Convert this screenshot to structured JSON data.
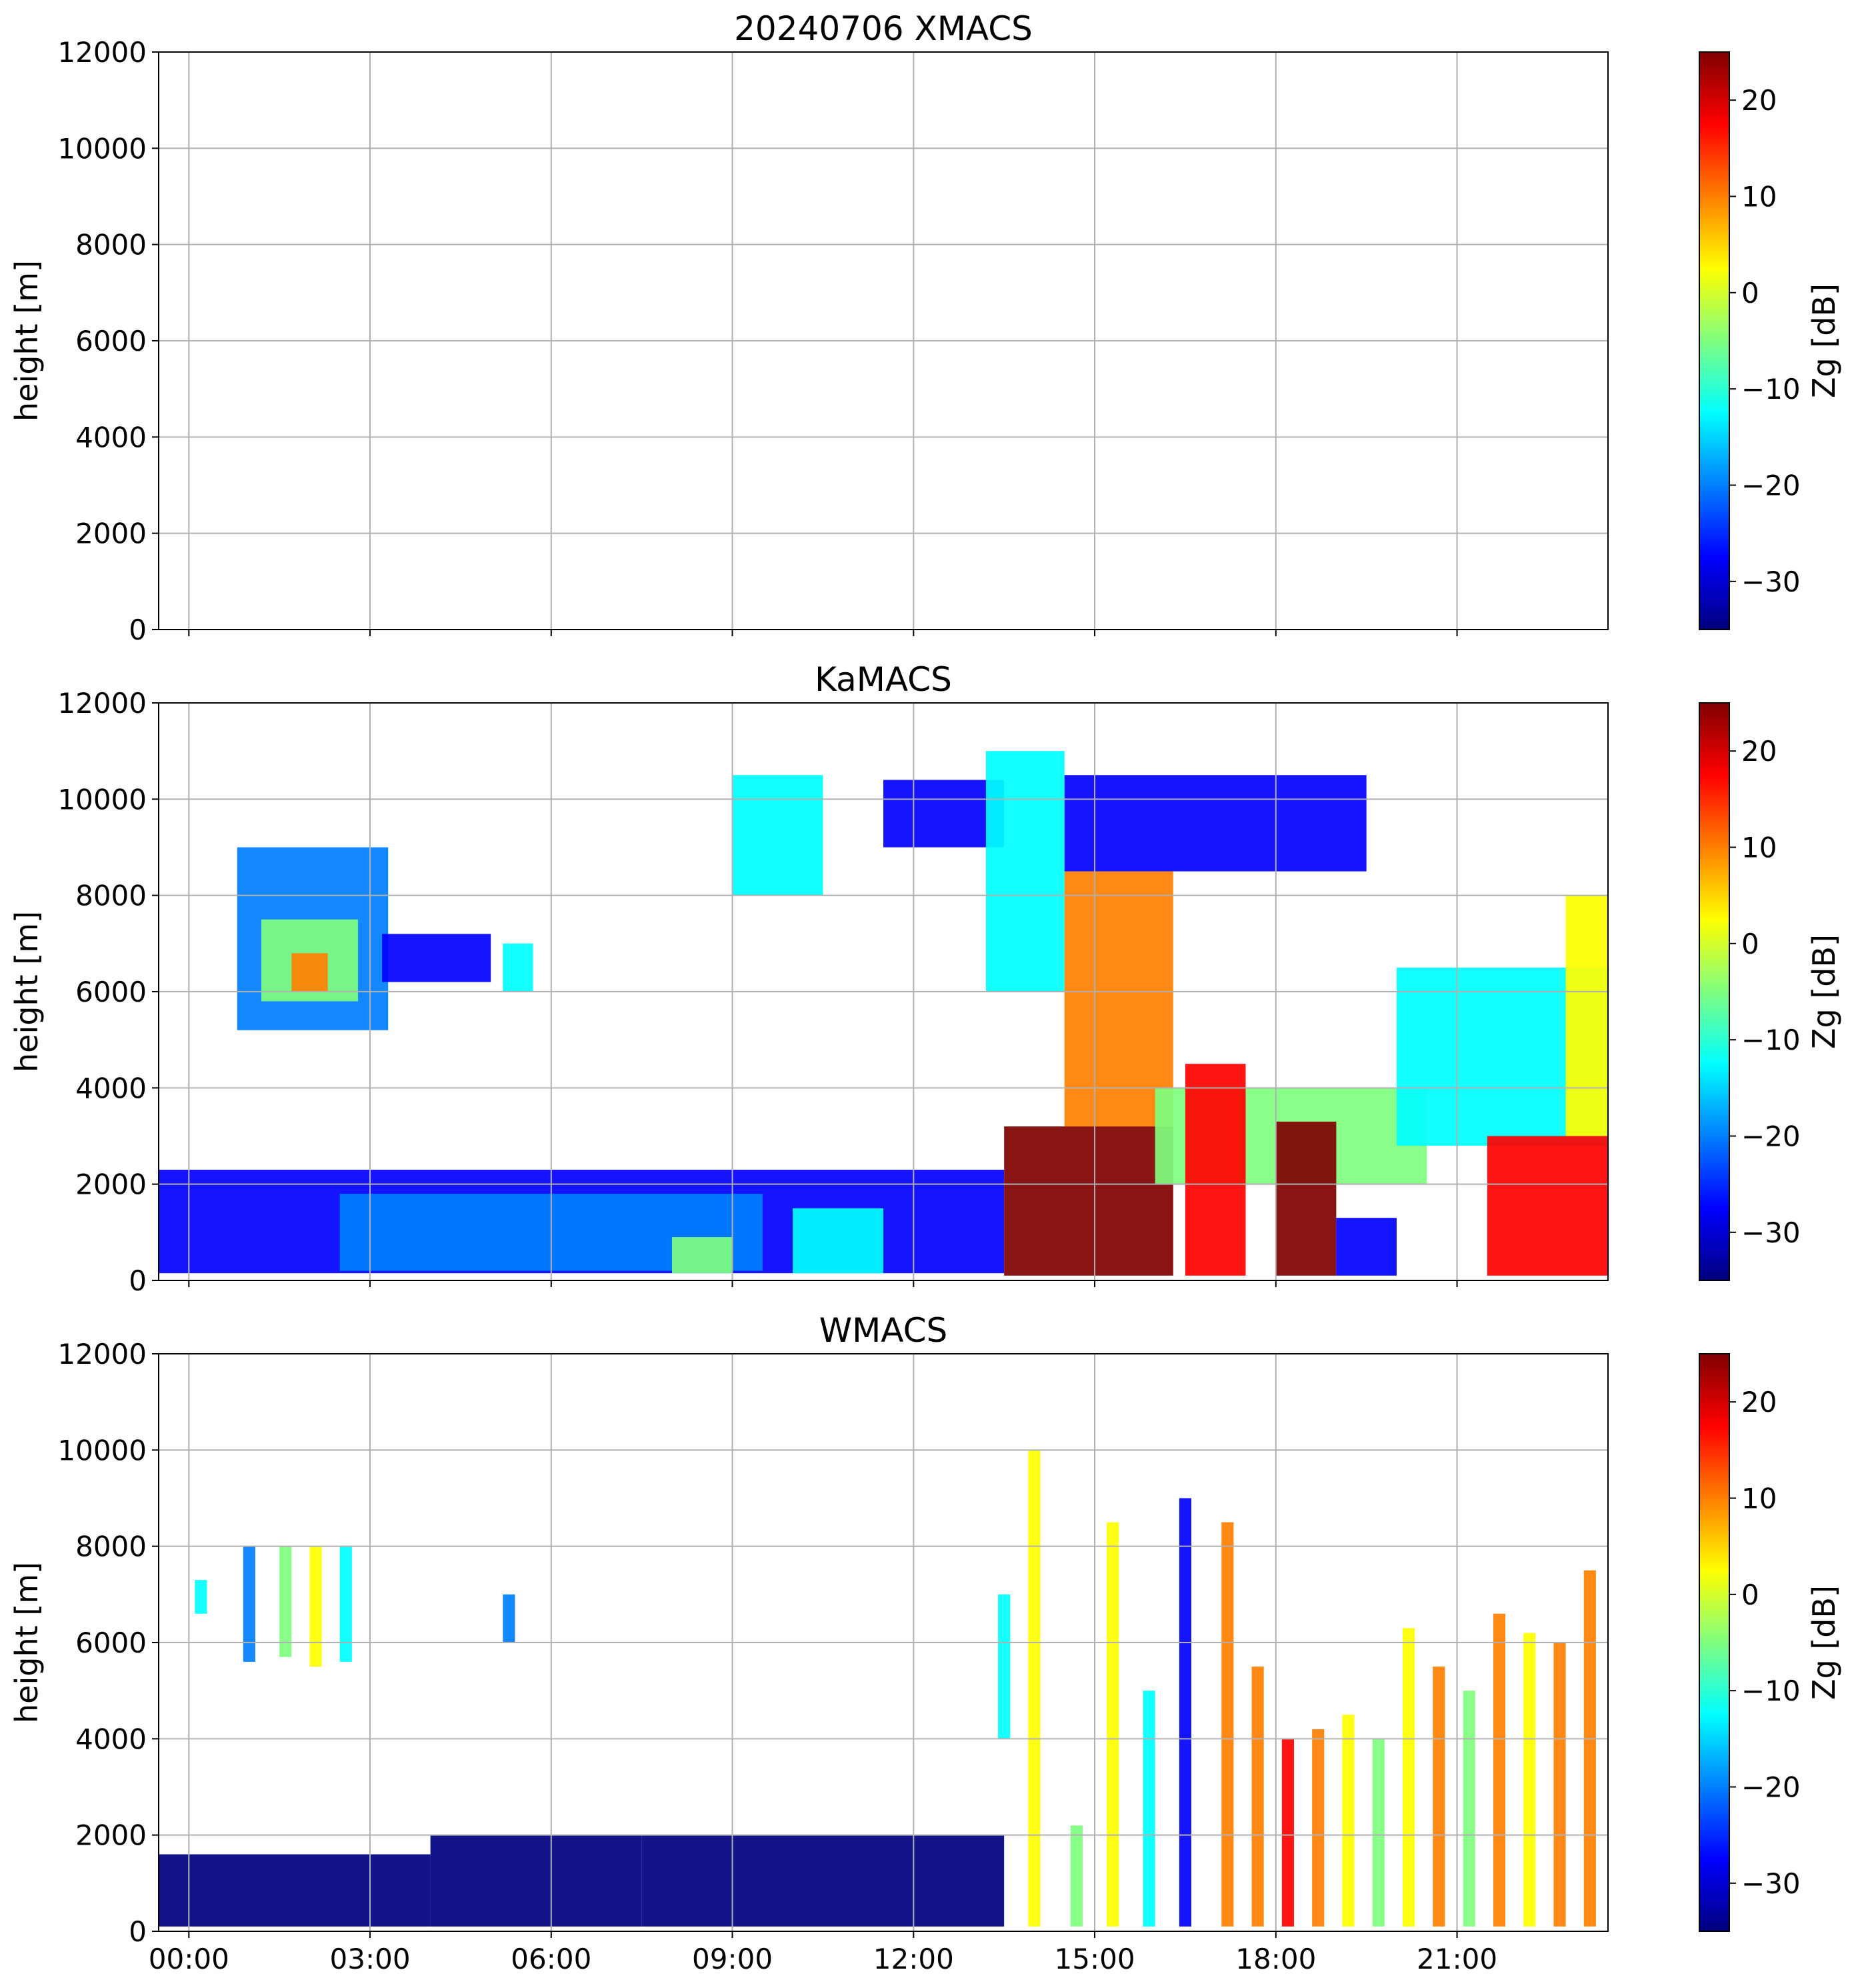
{
  "figure": {
    "title_prefix": "20240706",
    "height_unit": "m"
  },
  "colormap": {
    "name": "jet",
    "stops": [
      "#00007f",
      "#0000ff",
      "#007fff",
      "#00ffff",
      "#7fff7f",
      "#ffff00",
      "#ff7f00",
      "#ff0000",
      "#7f0000"
    ]
  },
  "chart_data": [
    {
      "type": "heatmap",
      "title": "20240706 XMACS",
      "xlabel": "",
      "ylabel": "height [m]",
      "ylim": [
        0,
        12000
      ],
      "xlim_hours": [
        -0.5,
        23.5
      ],
      "yticks": [
        0,
        2000,
        4000,
        6000,
        8000,
        10000,
        12000
      ],
      "xticks": [
        "00:00",
        "03:00",
        "06:00",
        "09:00",
        "12:00",
        "15:00",
        "18:00",
        "21:00"
      ],
      "show_xticklabels": false,
      "grid": true,
      "colorbar": {
        "label": "Zg [dB]",
        "range": [
          -35,
          25
        ],
        "ticks": [
          -30,
          -20,
          -10,
          0,
          10,
          20
        ]
      },
      "echoes": []
    },
    {
      "type": "heatmap",
      "title": "KaMACS",
      "xlabel": "",
      "ylabel": "height [m]",
      "ylim": [
        0,
        12000
      ],
      "xlim_hours": [
        -0.5,
        23.5
      ],
      "yticks": [
        0,
        2000,
        4000,
        6000,
        8000,
        10000,
        12000
      ],
      "xticks": [
        "00:00",
        "03:00",
        "06:00",
        "09:00",
        "12:00",
        "15:00",
        "18:00",
        "21:00"
      ],
      "show_xticklabels": false,
      "grid": true,
      "colorbar": {
        "label": "Zg [dB]",
        "range": [
          -35,
          25
        ],
        "ticks": [
          -30,
          -20,
          -10,
          0,
          10,
          20
        ]
      },
      "echoes": [
        {
          "t0": -0.5,
          "t1": 13.5,
          "h0": 150,
          "h1": 2300,
          "z": -30
        },
        {
          "t0": 2.5,
          "t1": 9.5,
          "h0": 200,
          "h1": 1800,
          "z": -18
        },
        {
          "t0": 8.0,
          "t1": 9.0,
          "h0": 150,
          "h1": 900,
          "z": -5
        },
        {
          "t0": 10.0,
          "t1": 11.5,
          "h0": 150,
          "h1": 1500,
          "z": -12
        },
        {
          "t0": 0.8,
          "t1": 3.3,
          "h0": 5200,
          "h1": 9000,
          "z": -18
        },
        {
          "t0": 1.2,
          "t1": 2.8,
          "h0": 5800,
          "h1": 7500,
          "z": -2
        },
        {
          "t0": 1.7,
          "t1": 2.3,
          "h0": 6000,
          "h1": 6800,
          "z": 12
        },
        {
          "t0": 3.2,
          "t1": 5.0,
          "h0": 6200,
          "h1": 7200,
          "z": -25
        },
        {
          "t0": 5.2,
          "t1": 5.7,
          "h0": 6000,
          "h1": 7000,
          "z": -12
        },
        {
          "t0": 9.0,
          "t1": 10.5,
          "h0": 8000,
          "h1": 10500,
          "z": -15
        },
        {
          "t0": 11.5,
          "t1": 13.5,
          "h0": 9000,
          "h1": 10400,
          "z": -25
        },
        {
          "t0": 13.2,
          "t1": 14.5,
          "h0": 6000,
          "h1": 11000,
          "z": -10
        },
        {
          "t0": 13.5,
          "t1": 16.3,
          "h0": 100,
          "h1": 3200,
          "z": 25
        },
        {
          "t0": 14.5,
          "t1": 16.3,
          "h0": 3200,
          "h1": 8500,
          "z": 12
        },
        {
          "t0": 14.5,
          "t1": 19.5,
          "h0": 8500,
          "h1": 10500,
          "z": -25
        },
        {
          "t0": 16.0,
          "t1": 20.5,
          "h0": 2000,
          "h1": 4000,
          "z": -5
        },
        {
          "t0": 16.5,
          "t1": 17.5,
          "h0": 100,
          "h1": 4500,
          "z": 18
        },
        {
          "t0": 18.0,
          "t1": 19.0,
          "h0": 100,
          "h1": 3300,
          "z": 25
        },
        {
          "t0": 19.0,
          "t1": 20.0,
          "h0": 100,
          "h1": 1300,
          "z": -28
        },
        {
          "t0": 20.0,
          "t1": 23.5,
          "h0": 2800,
          "h1": 6500,
          "z": -10
        },
        {
          "t0": 21.5,
          "t1": 23.5,
          "h0": 100,
          "h1": 3000,
          "z": 20
        },
        {
          "t0": 22.8,
          "t1": 23.5,
          "h0": 3000,
          "h1": 8000,
          "z": 5
        }
      ]
    },
    {
      "type": "heatmap",
      "title": "WMACS",
      "xlabel": "",
      "ylabel": "height [m]",
      "ylim": [
        0,
        12000
      ],
      "xlim_hours": [
        -0.5,
        23.5
      ],
      "yticks": [
        0,
        2000,
        4000,
        6000,
        8000,
        10000,
        12000
      ],
      "xticks": [
        "00:00",
        "03:00",
        "06:00",
        "09:00",
        "12:00",
        "15:00",
        "18:00",
        "21:00"
      ],
      "show_xticklabels": true,
      "grid": true,
      "colorbar": {
        "label": "Zg [dB]",
        "range": [
          -35,
          25
        ],
        "ticks": [
          -30,
          -20,
          -10,
          0,
          10,
          20
        ]
      },
      "echoes": [
        {
          "t0": -0.5,
          "t1": 4.0,
          "h0": 100,
          "h1": 1600,
          "z": -32
        },
        {
          "t0": 4.0,
          "t1": 7.5,
          "h0": 100,
          "h1": 2000,
          "z": -33
        },
        {
          "t0": 7.5,
          "t1": 13.5,
          "h0": 100,
          "h1": 2000,
          "z": -34
        },
        {
          "t0": 0.1,
          "t1": 0.3,
          "h0": 6600,
          "h1": 7300,
          "z": -15
        },
        {
          "t0": 0.9,
          "t1": 1.1,
          "h0": 5600,
          "h1": 8000,
          "z": -18
        },
        {
          "t0": 1.5,
          "t1": 1.7,
          "h0": 5700,
          "h1": 8000,
          "z": -6
        },
        {
          "t0": 2.0,
          "t1": 2.2,
          "h0": 5500,
          "h1": 8000,
          "z": 2
        },
        {
          "t0": 2.5,
          "t1": 2.7,
          "h0": 5600,
          "h1": 8000,
          "z": -15
        },
        {
          "t0": 5.2,
          "t1": 5.4,
          "h0": 6000,
          "h1": 7000,
          "z": -18
        },
        {
          "t0": 13.4,
          "t1": 13.6,
          "h0": 4000,
          "h1": 7000,
          "z": -15
        },
        {
          "t0": 13.9,
          "t1": 14.1,
          "h0": 100,
          "h1": 10000,
          "z": 5
        },
        {
          "t0": 14.6,
          "t1": 14.8,
          "h0": 100,
          "h1": 2200,
          "z": -5
        },
        {
          "t0": 15.2,
          "t1": 15.4,
          "h0": 100,
          "h1": 8500,
          "z": 0
        },
        {
          "t0": 15.8,
          "t1": 16.0,
          "h0": 100,
          "h1": 5000,
          "z": -10
        },
        {
          "t0": 16.4,
          "t1": 16.6,
          "h0": 100,
          "h1": 9000,
          "z": -25
        },
        {
          "t0": 17.1,
          "t1": 17.3,
          "h0": 100,
          "h1": 8500,
          "z": 8
        },
        {
          "t0": 17.6,
          "t1": 17.8,
          "h0": 100,
          "h1": 5500,
          "z": 10
        },
        {
          "t0": 18.1,
          "t1": 18.3,
          "h0": 100,
          "h1": 4000,
          "z": 15
        },
        {
          "t0": 18.6,
          "t1": 18.8,
          "h0": 100,
          "h1": 4200,
          "z": 8
        },
        {
          "t0": 19.1,
          "t1": 19.3,
          "h0": 100,
          "h1": 4500,
          "z": 5
        },
        {
          "t0": 19.6,
          "t1": 19.8,
          "h0": 100,
          "h1": 4000,
          "z": -5
        },
        {
          "t0": 20.1,
          "t1": 20.3,
          "h0": 100,
          "h1": 6300,
          "z": 0
        },
        {
          "t0": 20.6,
          "t1": 20.8,
          "h0": 100,
          "h1": 5500,
          "z": 10
        },
        {
          "t0": 21.1,
          "t1": 21.3,
          "h0": 100,
          "h1": 5000,
          "z": -5
        },
        {
          "t0": 21.6,
          "t1": 21.8,
          "h0": 100,
          "h1": 6600,
          "z": 10
        },
        {
          "t0": 22.1,
          "t1": 22.3,
          "h0": 100,
          "h1": 6200,
          "z": 5
        },
        {
          "t0": 22.6,
          "t1": 22.8,
          "h0": 100,
          "h1": 6000,
          "z": 10
        },
        {
          "t0": 23.1,
          "t1": 23.3,
          "h0": 100,
          "h1": 7500,
          "z": 12
        }
      ]
    }
  ]
}
